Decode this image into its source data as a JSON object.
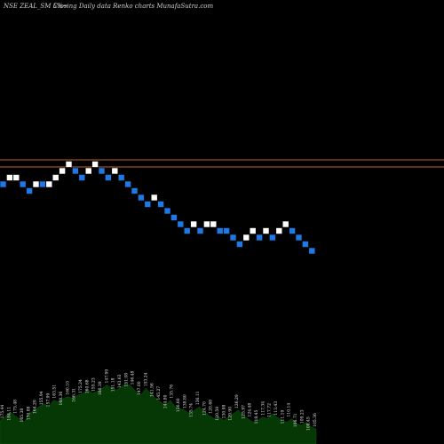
{
  "header": {
    "left": "NSE ZEAL_SM 5%~",
    "right": "Closing Daily data  Renko  charts MunafaSutra.com"
  },
  "chart_data": {
    "type": "renko",
    "title": "",
    "brick_size_pct": 5,
    "colors": {
      "up": "#ffffff",
      "down": "#1e78e6",
      "resistance": "#c0622a",
      "volume": "#063806",
      "background": "#000000"
    },
    "levels": [
      188,
      180
    ],
    "level_units": "chart",
    "bricks": [
      {
        "i": 0,
        "level": 0,
        "dir": "down"
      },
      {
        "i": 1,
        "level": 1,
        "dir": "up"
      },
      {
        "i": 2,
        "level": 1,
        "dir": "up"
      },
      {
        "i": 3,
        "level": 0,
        "dir": "down"
      },
      {
        "i": 4,
        "level": -1,
        "dir": "down"
      },
      {
        "i": 5,
        "level": 0,
        "dir": "up"
      },
      {
        "i": 6,
        "level": 0,
        "dir": "down"
      },
      {
        "i": 7,
        "level": 0,
        "dir": "up"
      },
      {
        "i": 8,
        "level": 1,
        "dir": "up"
      },
      {
        "i": 9,
        "level": 2,
        "dir": "up"
      },
      {
        "i": 10,
        "level": 3,
        "dir": "up"
      },
      {
        "i": 11,
        "level": 2,
        "dir": "down"
      },
      {
        "i": 12,
        "level": 1,
        "dir": "down"
      },
      {
        "i": 13,
        "level": 2,
        "dir": "up"
      },
      {
        "i": 14,
        "level": 3,
        "dir": "up"
      },
      {
        "i": 15,
        "level": 2,
        "dir": "down"
      },
      {
        "i": 16,
        "level": 1,
        "dir": "down"
      },
      {
        "i": 17,
        "level": 2,
        "dir": "up"
      },
      {
        "i": 18,
        "level": 1,
        "dir": "down"
      },
      {
        "i": 19,
        "level": 0,
        "dir": "down"
      },
      {
        "i": 20,
        "level": -1,
        "dir": "down"
      },
      {
        "i": 21,
        "level": -2,
        "dir": "down"
      },
      {
        "i": 22,
        "level": -3,
        "dir": "down"
      },
      {
        "i": 23,
        "level": -2,
        "dir": "up"
      },
      {
        "i": 24,
        "level": -3,
        "dir": "down"
      },
      {
        "i": 25,
        "level": -4,
        "dir": "down"
      },
      {
        "i": 26,
        "level": -5,
        "dir": "down"
      },
      {
        "i": 27,
        "level": -6,
        "dir": "down"
      },
      {
        "i": 28,
        "level": -7,
        "dir": "down"
      },
      {
        "i": 29,
        "level": -6,
        "dir": "up"
      },
      {
        "i": 30,
        "level": -7,
        "dir": "down"
      },
      {
        "i": 31,
        "level": -6,
        "dir": "up"
      },
      {
        "i": 32,
        "level": -6,
        "dir": "up"
      },
      {
        "i": 33,
        "level": -7,
        "dir": "down"
      },
      {
        "i": 34,
        "level": -7,
        "dir": "down"
      },
      {
        "i": 35,
        "level": -8,
        "dir": "down"
      },
      {
        "i": 36,
        "level": -9,
        "dir": "down"
      },
      {
        "i": 37,
        "level": -8,
        "dir": "up"
      },
      {
        "i": 38,
        "level": -7,
        "dir": "up"
      },
      {
        "i": 39,
        "level": -8,
        "dir": "down"
      },
      {
        "i": 40,
        "level": -7,
        "dir": "up"
      },
      {
        "i": 41,
        "level": -8,
        "dir": "down"
      },
      {
        "i": 42,
        "level": -7,
        "dir": "up"
      },
      {
        "i": 43,
        "level": -6,
        "dir": "up"
      },
      {
        "i": 44,
        "level": -7,
        "dir": "down"
      },
      {
        "i": 45,
        "level": -8,
        "dir": "down"
      },
      {
        "i": 46,
        "level": -9,
        "dir": "down"
      },
      {
        "i": 47,
        "level": -10,
        "dir": "down"
      }
    ],
    "volume": [
      14,
      16,
      19,
      17,
      15,
      13,
      18,
      20,
      22,
      24,
      22,
      26,
      25,
      27,
      28,
      27,
      29,
      30,
      32,
      30,
      31,
      33,
      35,
      33,
      32,
      34,
      36,
      34,
      31,
      29,
      33,
      30,
      27,
      25,
      23,
      26,
      22,
      21,
      20,
      18,
      20,
      22,
      19,
      17,
      15,
      16,
      14,
      16,
      18,
      20,
      17,
      15,
      13,
      14,
      16,
      15,
      18,
      16,
      14,
      13,
      15,
      12,
      11,
      13,
      10,
      9
    ],
    "volume_labels": [
      "175.44",
      "184.11",
      "175.48",
      "165.38",
      "170.88",
      "164.29",
      "155.94",
      "157.99",
      "163.51",
      "168.36",
      "160.10",
      "166.31",
      "175.24",
      "160.68",
      "155.23",
      "160.39",
      "147.99",
      "151.18",
      "143.63",
      "151.08",
      "146.48",
      "147.00",
      "153.24",
      "141.56",
      "145.27",
      "144.80",
      "135.76",
      "136.60",
      "138.80",
      "135.74",
      "136.11",
      "124.70",
      "120.68",
      "120.59",
      "130.98",
      "129.90",
      "126.29",
      "125.97",
      "124.48",
      "118.45",
      "117.34",
      "117.72",
      "113.43",
      "111.19",
      "110.14",
      "106.71",
      "109.23",
      "108.45",
      "105.36"
    ]
  }
}
